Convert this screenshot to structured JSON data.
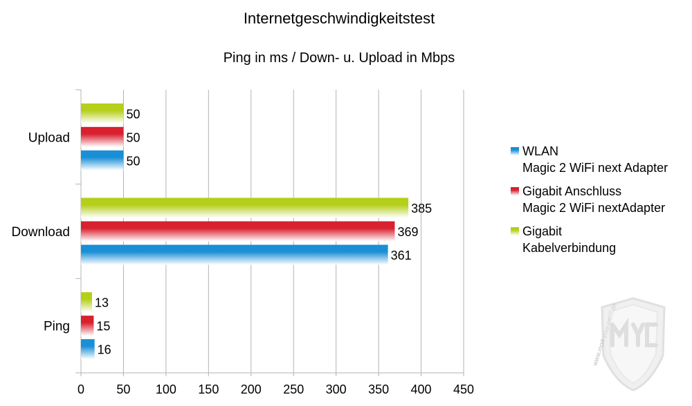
{
  "chart_data": {
    "type": "bar",
    "orientation": "horizontal",
    "title": "Internetgeschwindigkeitstest",
    "subtitle": "Ping in ms / Down- u. Upload in Mbps",
    "categories": [
      "Upload",
      "Download",
      "Ping"
    ],
    "series": [
      {
        "name_lines": [
          "Gigabit",
          "Kabelverbindung"
        ],
        "values": [
          50,
          385,
          13
        ],
        "color": "#b5cf1a"
      },
      {
        "name_lines": [
          "Gigabit Anschluss",
          "Magic 2 WiFi nextAdapter"
        ],
        "values": [
          50,
          369,
          15
        ],
        "color": "#d8202f"
      },
      {
        "name_lines": [
          "WLAN",
          "Magic 2 WiFi next Adapter"
        ],
        "values": [
          50,
          361,
          16
        ],
        "color": "#1a8fd6"
      }
    ],
    "legend_order": [
      2,
      1,
      0
    ],
    "xlim": [
      0,
      450
    ],
    "xticks": [
      0,
      50,
      100,
      150,
      200,
      250,
      300,
      350,
      400,
      450
    ],
    "grid": "vertical",
    "legend_position": "right",
    "watermark": "MYC www.mod-your-case.de"
  }
}
